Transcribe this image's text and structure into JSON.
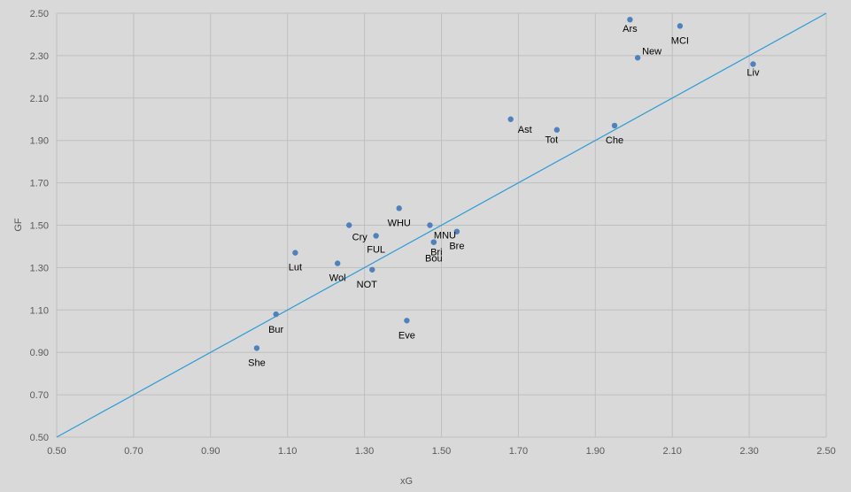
{
  "chart_data": {
    "type": "scatter",
    "title": "",
    "xlabel": "xG",
    "ylabel": "GF",
    "xlim": [
      0.5,
      2.5
    ],
    "ylim": [
      0.5,
      2.5
    ],
    "x_ticks": [
      "0.50",
      "0.70",
      "0.90",
      "1.10",
      "1.30",
      "1.50",
      "1.70",
      "1.90",
      "2.10",
      "2.30",
      "2.50"
    ],
    "y_ticks": [
      "0.50",
      "0.70",
      "0.90",
      "1.10",
      "1.30",
      "1.50",
      "1.70",
      "1.90",
      "2.10",
      "2.30",
      "2.50"
    ],
    "grid": true,
    "legend": "none",
    "point_color": "#4f81bd",
    "line_color": "#2e9bd6",
    "reference_line": {
      "x": [
        0.5,
        2.5
      ],
      "y": [
        0.5,
        2.5
      ]
    },
    "points": [
      {
        "label": "Ars",
        "x": 1.99,
        "y": 2.47
      },
      {
        "label": "MCI",
        "x": 2.12,
        "y": 2.44
      },
      {
        "label": "New",
        "x": 2.01,
        "y": 2.29
      },
      {
        "label": "Liv",
        "x": 2.31,
        "y": 2.26
      },
      {
        "label": "Ast",
        "x": 1.68,
        "y": 2.0
      },
      {
        "label": "Tot",
        "x": 1.8,
        "y": 1.95
      },
      {
        "label": "Che",
        "x": 1.95,
        "y": 1.97
      },
      {
        "label": "WHU",
        "x": 1.39,
        "y": 1.58
      },
      {
        "label": "Cry",
        "x": 1.26,
        "y": 1.5
      },
      {
        "label": "MNU",
        "x": 1.47,
        "y": 1.5
      },
      {
        "label": "FUL",
        "x": 1.33,
        "y": 1.45
      },
      {
        "label": "Bre",
        "x": 1.54,
        "y": 1.47
      },
      {
        "label": "Bri",
        "x": 1.48,
        "y": 1.42
      },
      {
        "label": "Bou",
        "x": 1.48,
        "y": 1.42
      },
      {
        "label": "Lut",
        "x": 1.12,
        "y": 1.37
      },
      {
        "label": "Wol",
        "x": 1.23,
        "y": 1.32
      },
      {
        "label": "NOT",
        "x": 1.32,
        "y": 1.29
      },
      {
        "label": "Bur",
        "x": 1.07,
        "y": 1.08
      },
      {
        "label": "Eve",
        "x": 1.41,
        "y": 1.05
      },
      {
        "label": "She",
        "x": 1.02,
        "y": 0.92
      }
    ]
  }
}
